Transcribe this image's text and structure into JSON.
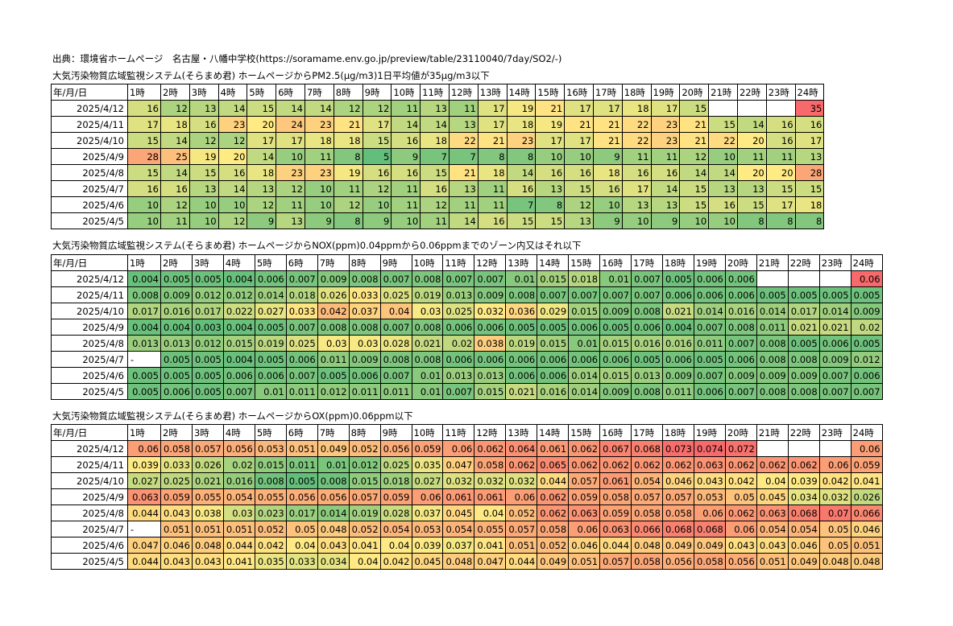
{
  "source_line": "出典：環境省ホームページ　名古屋・八幡中学校(https://soramame.env.go.jp/preview/table/23110040/7day/SO2/-)",
  "header_row": [
    "年/月/日",
    "1時",
    "2時",
    "3時",
    "4時",
    "5時",
    "6時",
    "7時",
    "8時",
    "9時",
    "10時",
    "11時",
    "12時",
    "13時",
    "14時",
    "15時",
    "16時",
    "17時",
    "18時",
    "19時",
    "20時",
    "21時",
    "22時",
    "23時",
    "24時"
  ],
  "tables": [
    {
      "id": "pm25",
      "title": "大気汚染物質広域監視システム(そらまめ君) ホームページからPM2.5(μg/m3)1日平均値が35μg/m3以下",
      "scale_min": 5,
      "scale_max": 35,
      "rows": [
        {
          "date": "2025/4/12",
          "values": [
            "16",
            "12",
            "13",
            "14",
            "15",
            "14",
            "14",
            "12",
            "12",
            "11",
            "13",
            "11",
            "17",
            "19",
            "21",
            "17",
            "17",
            "18",
            "17",
            "15",
            "",
            "",
            "",
            "35"
          ]
        },
        {
          "date": "2025/4/11",
          "values": [
            "17",
            "18",
            "16",
            "23",
            "20",
            "24",
            "23",
            "21",
            "17",
            "14",
            "14",
            "13",
            "17",
            "18",
            "19",
            "21",
            "21",
            "22",
            "23",
            "21",
            "15",
            "14",
            "16",
            "16"
          ]
        },
        {
          "date": "2025/4/10",
          "values": [
            "15",
            "14",
            "12",
            "12",
            "17",
            "17",
            "18",
            "18",
            "15",
            "16",
            "18",
            "22",
            "21",
            "23",
            "17",
            "17",
            "21",
            "22",
            "23",
            "21",
            "22",
            "20",
            "16",
            "17"
          ]
        },
        {
          "date": "2025/4/9",
          "values": [
            "28",
            "25",
            "19",
            "20",
            "14",
            "10",
            "11",
            "8",
            "5",
            "9",
            "7",
            "7",
            "8",
            "8",
            "10",
            "10",
            "9",
            "11",
            "11",
            "12",
            "10",
            "11",
            "11",
            "13"
          ]
        },
        {
          "date": "2025/4/8",
          "values": [
            "15",
            "14",
            "15",
            "16",
            "18",
            "23",
            "23",
            "19",
            "16",
            "16",
            "15",
            "21",
            "18",
            "14",
            "16",
            "16",
            "18",
            "16",
            "16",
            "14",
            "14",
            "20",
            "20",
            "28"
          ]
        },
        {
          "date": "2025/4/7",
          "values": [
            "16",
            "16",
            "13",
            "14",
            "13",
            "12",
            "10",
            "11",
            "12",
            "11",
            "16",
            "13",
            "11",
            "16",
            "13",
            "15",
            "16",
            "17",
            "14",
            "15",
            "13",
            "13",
            "15",
            "15"
          ]
        },
        {
          "date": "2025/4/6",
          "values": [
            "10",
            "12",
            "10",
            "10",
            "12",
            "11",
            "10",
            "12",
            "10",
            "11",
            "12",
            "11",
            "11",
            "7",
            "8",
            "12",
            "10",
            "13",
            "13",
            "15",
            "16",
            "15",
            "17",
            "18"
          ]
        },
        {
          "date": "2025/4/5",
          "values": [
            "10",
            "11",
            "10",
            "12",
            "9",
            "13",
            "9",
            "8",
            "9",
            "10",
            "11",
            "14",
            "16",
            "15",
            "15",
            "13",
            "9",
            "10",
            "9",
            "10",
            "10",
            "8",
            "8",
            "8"
          ]
        }
      ]
    },
    {
      "id": "nox",
      "title": "大気汚染物質広域監視システム(そらまめ君) ホームページからNOX(ppm)0.04ppmから0.06ppmまでのゾーン内又はそれ以下",
      "scale_min": 0.003,
      "scale_max": 0.06,
      "rows": [
        {
          "date": "2025/4/12",
          "values": [
            "0.004",
            "0.005",
            "0.005",
            "0.004",
            "0.006",
            "0.007",
            "0.009",
            "0.008",
            "0.007",
            "0.008",
            "0.007",
            "0.007",
            "0.01",
            "0.015",
            "0.018",
            "0.01",
            "0.007",
            "0.005",
            "0.006",
            "0.006",
            "",
            "",
            "",
            "0.06"
          ]
        },
        {
          "date": "2025/4/11",
          "values": [
            "0.008",
            "0.009",
            "0.012",
            "0.012",
            "0.014",
            "0.018",
            "0.026",
            "0.033",
            "0.025",
            "0.019",
            "0.013",
            "0.009",
            "0.008",
            "0.007",
            "0.007",
            "0.007",
            "0.007",
            "0.006",
            "0.006",
            "0.006",
            "0.005",
            "0.005",
            "0.005",
            "0.005"
          ]
        },
        {
          "date": "2025/4/10",
          "values": [
            "0.017",
            "0.016",
            "0.017",
            "0.022",
            "0.027",
            "0.033",
            "0.042",
            "0.037",
            "0.04",
            "0.03",
            "0.025",
            "0.032",
            "0.036",
            "0.029",
            "0.015",
            "0.009",
            "0.008",
            "0.021",
            "0.014",
            "0.016",
            "0.014",
            "0.017",
            "0.014",
            "0.009"
          ]
        },
        {
          "date": "2025/4/9",
          "values": [
            "0.004",
            "0.004",
            "0.003",
            "0.004",
            "0.005",
            "0.007",
            "0.008",
            "0.008",
            "0.007",
            "0.008",
            "0.006",
            "0.006",
            "0.005",
            "0.005",
            "0.006",
            "0.005",
            "0.006",
            "0.004",
            "0.007",
            "0.008",
            "0.011",
            "0.021",
            "0.021",
            "0.02"
          ]
        },
        {
          "date": "2025/4/8",
          "values": [
            "0.013",
            "0.013",
            "0.012",
            "0.015",
            "0.019",
            "0.025",
            "0.03",
            "0.03",
            "0.028",
            "0.021",
            "0.02",
            "0.038",
            "0.019",
            "0.015",
            "0.01",
            "0.015",
            "0.016",
            "0.016",
            "0.011",
            "0.007",
            "0.008",
            "0.005",
            "0.006",
            "0.005"
          ]
        },
        {
          "date": "2025/4/7",
          "values": [
            "-",
            "0.005",
            "0.005",
            "0.004",
            "0.005",
            "0.006",
            "0.011",
            "0.009",
            "0.008",
            "0.008",
            "0.006",
            "0.006",
            "0.006",
            "0.006",
            "0.006",
            "0.006",
            "0.005",
            "0.006",
            "0.005",
            "0.006",
            "0.008",
            "0.008",
            "0.009",
            "0.012"
          ]
        },
        {
          "date": "2025/4/6",
          "values": [
            "0.005",
            "0.005",
            "0.005",
            "0.006",
            "0.006",
            "0.007",
            "0.005",
            "0.006",
            "0.007",
            "0.01",
            "0.013",
            "0.013",
            "0.006",
            "0.006",
            "0.014",
            "0.015",
            "0.013",
            "0.009",
            "0.007",
            "0.009",
            "0.009",
            "0.009",
            "0.007",
            "0.006"
          ]
        },
        {
          "date": "2025/4/5",
          "values": [
            "0.005",
            "0.006",
            "0.005",
            "0.007",
            "0.01",
            "0.011",
            "0.012",
            "0.011",
            "0.011",
            "0.01",
            "0.007",
            "0.015",
            "0.021",
            "0.016",
            "0.014",
            "0.009",
            "0.008",
            "0.011",
            "0.006",
            "0.007",
            "0.008",
            "0.008",
            "0.007",
            "0.007"
          ]
        }
      ]
    },
    {
      "id": "ox",
      "title": "大気汚染物質広域監視システム(そらまめ君) ホームページからOX(ppm)0.06ppm以下",
      "scale_min": 0.005,
      "scale_max": 0.074,
      "rows": [
        {
          "date": "2025/4/12",
          "values": [
            "0.06",
            "0.058",
            "0.057",
            "0.056",
            "0.053",
            "0.051",
            "0.049",
            "0.052",
            "0.056",
            "0.059",
            "0.06",
            "0.062",
            "0.064",
            "0.061",
            "0.062",
            "0.067",
            "0.068",
            "0.073",
            "0.074",
            "0.072",
            "",
            "",
            "",
            "0.06"
          ]
        },
        {
          "date": "2025/4/11",
          "values": [
            "0.039",
            "0.033",
            "0.026",
            "0.02",
            "0.015",
            "0.011",
            "0.01",
            "0.012",
            "0.025",
            "0.035",
            "0.047",
            "0.058",
            "0.062",
            "0.065",
            "0.062",
            "0.062",
            "0.062",
            "0.062",
            "0.063",
            "0.062",
            "0.062",
            "0.062",
            "0.06",
            "0.059"
          ]
        },
        {
          "date": "2025/4/10",
          "values": [
            "0.027",
            "0.025",
            "0.021",
            "0.016",
            "0.008",
            "0.005",
            "0.008",
            "0.015",
            "0.018",
            "0.027",
            "0.032",
            "0.032",
            "0.032",
            "0.044",
            "0.057",
            "0.061",
            "0.054",
            "0.046",
            "0.043",
            "0.042",
            "0.04",
            "0.039",
            "0.042",
            "0.041"
          ]
        },
        {
          "date": "2025/4/9",
          "values": [
            "0.063",
            "0.059",
            "0.055",
            "0.054",
            "0.055",
            "0.056",
            "0.056",
            "0.057",
            "0.059",
            "0.06",
            "0.061",
            "0.061",
            "0.06",
            "0.062",
            "0.059",
            "0.058",
            "0.057",
            "0.057",
            "0.053",
            "0.05",
            "0.045",
            "0.034",
            "0.032",
            "0.026"
          ]
        },
        {
          "date": "2025/4/8",
          "values": [
            "0.044",
            "0.043",
            "0.038",
            "0.03",
            "0.023",
            "0.017",
            "0.014",
            "0.019",
            "0.028",
            "0.037",
            "0.045",
            "0.04",
            "0.052",
            "0.062",
            "0.063",
            "0.059",
            "0.058",
            "0.058",
            "0.06",
            "0.062",
            "0.063",
            "0.068",
            "0.07",
            "0.066"
          ]
        },
        {
          "date": "2025/4/7",
          "values": [
            "-",
            "0.051",
            "0.051",
            "0.051",
            "0.052",
            "0.05",
            "0.048",
            "0.052",
            "0.054",
            "0.053",
            "0.054",
            "0.055",
            "0.057",
            "0.058",
            "0.06",
            "0.063",
            "0.066",
            "0.068",
            "0.068",
            "0.06",
            "0.054",
            "0.054",
            "0.05",
            "0.046"
          ]
        },
        {
          "date": "2025/4/6",
          "values": [
            "0.047",
            "0.046",
            "0.048",
            "0.044",
            "0.042",
            "0.04",
            "0.043",
            "0.041",
            "0.04",
            "0.039",
            "0.037",
            "0.041",
            "0.051",
            "0.052",
            "0.046",
            "0.044",
            "0.048",
            "0.049",
            "0.049",
            "0.043",
            "0.043",
            "0.046",
            "0.05",
            "0.051"
          ]
        },
        {
          "date": "2025/4/5",
          "values": [
            "0.044",
            "0.043",
            "0.043",
            "0.041",
            "0.035",
            "0.033",
            "0.034",
            "0.04",
            "0.042",
            "0.045",
            "0.048",
            "0.047",
            "0.044",
            "0.049",
            "0.051",
            "0.057",
            "0.058",
            "0.056",
            "0.058",
            "0.056",
            "0.051",
            "0.049",
            "0.048",
            "0.048"
          ]
        }
      ]
    }
  ],
  "colors": {
    "low": "#63be7b",
    "mid": "#ffeb84",
    "high": "#f8696b"
  }
}
